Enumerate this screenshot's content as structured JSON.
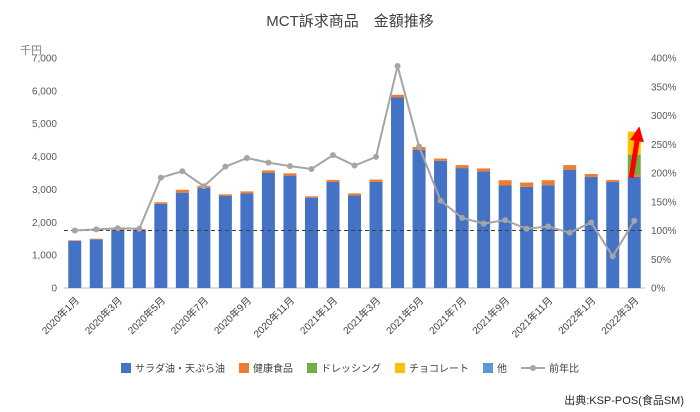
{
  "title": "MCT訴求商品　金額推移",
  "y_left_label": "千円",
  "source": "出典:KSP-POS(食品SM)",
  "chart_data": {
    "type": "bar",
    "stacked": true,
    "legend_position": "bottom",
    "grid": false,
    "categories": [
      "2020年1月",
      "2020年2月",
      "2020年3月",
      "2020年4月",
      "2020年5月",
      "2020年6月",
      "2020年7月",
      "2020年8月",
      "2020年9月",
      "2020年10月",
      "2020年11月",
      "2020年12月",
      "2021年1月",
      "2021年2月",
      "2021年3月",
      "2021年4月",
      "2021年5月",
      "2021年6月",
      "2021年7月",
      "2021年8月",
      "2021年9月",
      "2021年10月",
      "2021年11月",
      "2021年12月",
      "2022年1月",
      "2022年2月",
      "2022年3月"
    ],
    "x_label_every": 2,
    "series": [
      {
        "name": "サラダ油・天ぷら油",
        "color": "#4472C4",
        "values": [
          1430,
          1480,
          1760,
          1750,
          2560,
          2900,
          3050,
          2800,
          2880,
          3500,
          3420,
          2750,
          3230,
          2820,
          3230,
          5800,
          4200,
          3870,
          3650,
          3550,
          3120,
          3080,
          3130,
          3600,
          3380,
          3230,
          3380
        ]
      },
      {
        "name": "健康食品",
        "color": "#ED7D31",
        "values": [
          20,
          20,
          40,
          40,
          50,
          90,
          60,
          50,
          60,
          80,
          70,
          40,
          60,
          60,
          70,
          80,
          90,
          70,
          90,
          90,
          160,
          130,
          150,
          140,
          90,
          60,
          60
        ]
      },
      {
        "name": "ドレッシング",
        "color": "#70AD47",
        "values": [
          0,
          0,
          0,
          0,
          0,
          0,
          0,
          0,
          0,
          0,
          0,
          0,
          0,
          0,
          0,
          0,
          0,
          0,
          0,
          0,
          0,
          0,
          0,
          0,
          0,
          0,
          620
        ]
      },
      {
        "name": "チョコレート",
        "color": "#FFC000",
        "values": [
          0,
          0,
          0,
          0,
          0,
          0,
          0,
          0,
          0,
          0,
          0,
          0,
          0,
          0,
          0,
          0,
          0,
          0,
          0,
          0,
          0,
          0,
          0,
          0,
          0,
          0,
          700
        ]
      },
      {
        "name": "他",
        "color": "#5B9BD5",
        "values": [
          0,
          0,
          0,
          0,
          0,
          0,
          0,
          0,
          0,
          0,
          0,
          0,
          0,
          0,
          0,
          0,
          0,
          0,
          0,
          0,
          0,
          0,
          0,
          0,
          0,
          0,
          0
        ]
      }
    ],
    "line_series": {
      "name": "前年比",
      "color": "#A5A5A5",
      "axis": "right",
      "values": [
        100,
        102,
        104,
        103,
        192,
        203,
        177,
        211,
        226,
        218,
        212,
        207,
        231,
        213,
        228,
        386,
        246,
        152,
        122,
        112,
        118,
        103,
        107,
        96,
        114,
        55,
        117
      ]
    },
    "y_left": {
      "min": 0,
      "max": 7000,
      "step": 1000
    },
    "y_right": {
      "min": 0,
      "max": 400,
      "step": 50,
      "suffix": "%"
    },
    "reference_line": {
      "axis": "right",
      "value": 100,
      "style": "dashed",
      "color": "#404040"
    },
    "annotation": {
      "type": "arrow-up",
      "color": "#FF0000",
      "category_index": 26
    }
  }
}
